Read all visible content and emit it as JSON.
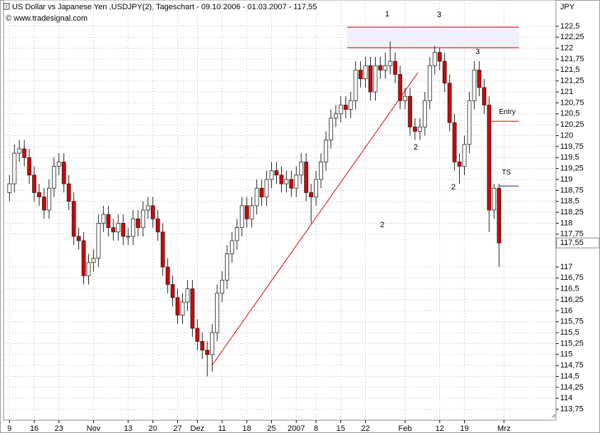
{
  "header": {
    "title": "US Dollar vs Japanese Yen ,USDJPY(2), Tageschart - 09.10.2006 - 01.03.2007 - 117,55",
    "copyright": "© www.tradesignal.com"
  },
  "chart_data": {
    "type": "candlestick",
    "y_unit": "JPY",
    "open": [
      118.7,
      118.9,
      119.6,
      119.7,
      119.5,
      119.1,
      118.7,
      118.6,
      118.3,
      118.8,
      119.3,
      119.4,
      118.9,
      118.5,
      117.7,
      117.6,
      116.8,
      117.1,
      117.2,
      118.0,
      118.2,
      117.9,
      117.8,
      118.0,
      117.7,
      117.7,
      118.1,
      117.9,
      118.3,
      118.4,
      118.1,
      117.8,
      117.0,
      116.6,
      116.3,
      115.9,
      116.2,
      116.5,
      115.6,
      115.3,
      115.1,
      115.0,
      115.5,
      116.4,
      116.7,
      117.3,
      117.6,
      117.9,
      118.4,
      118.1,
      118.4,
      118.8,
      118.6,
      119.0,
      119.2,
      119.1,
      118.9,
      119.0,
      118.8,
      119.1,
      119.4,
      118.7,
      118.6,
      119.0,
      119.4,
      119.9,
      120.4,
      120.5,
      120.7,
      120.6,
      120.8,
      121.5,
      121.3,
      121.6,
      121.0,
      121.6,
      121.5,
      121.6,
      121.7,
      121.4,
      120.8,
      120.9,
      120.2,
      120.1,
      120.2,
      120.8,
      121.6,
      121.9,
      121.7,
      121.2,
      120.3,
      119.4,
      119.3,
      119.8,
      120.8,
      121.5,
      121.1,
      120.7,
      118.3,
      118.8
    ],
    "high": [
      119.1,
      119.8,
      119.9,
      119.9,
      119.7,
      119.3,
      118.9,
      118.8,
      119.0,
      119.5,
      119.6,
      119.6,
      119.1,
      118.7,
      117.9,
      117.8,
      117.3,
      117.4,
      118.2,
      118.4,
      118.4,
      118.1,
      118.2,
      118.2,
      117.9,
      118.3,
      118.3,
      118.5,
      118.6,
      118.6,
      118.3,
      118.0,
      117.2,
      116.8,
      116.5,
      116.4,
      116.7,
      116.7,
      115.8,
      115.5,
      115.3,
      115.7,
      116.6,
      116.9,
      117.5,
      117.8,
      118.1,
      118.6,
      118.6,
      118.6,
      119.0,
      119.0,
      119.2,
      119.4,
      119.4,
      119.3,
      119.2,
      119.2,
      119.3,
      119.6,
      119.6,
      118.9,
      119.2,
      119.6,
      120.1,
      120.6,
      120.7,
      120.9,
      120.9,
      121.0,
      121.7,
      121.7,
      121.8,
      121.8,
      121.8,
      121.8,
      121.9,
      122.15,
      121.9,
      121.6,
      121.1,
      121.1,
      120.4,
      120.4,
      121.0,
      121.8,
      122.05,
      122.0,
      121.9,
      121.4,
      120.5,
      119.6,
      120.0,
      121.0,
      121.7,
      121.7,
      121.3,
      120.9,
      118.9,
      118.9
    ],
    "low": [
      118.5,
      118.7,
      119.4,
      119.3,
      118.9,
      118.5,
      118.4,
      118.1,
      118.1,
      118.6,
      119.1,
      118.7,
      118.3,
      117.5,
      117.4,
      116.6,
      116.6,
      116.9,
      117.0,
      117.8,
      117.7,
      117.6,
      117.6,
      117.5,
      117.5,
      117.5,
      117.7,
      117.7,
      118.1,
      117.9,
      117.6,
      116.8,
      116.4,
      116.1,
      115.7,
      115.7,
      116.0,
      115.4,
      115.1,
      114.9,
      114.5,
      114.6,
      115.3,
      116.2,
      116.5,
      117.1,
      117.4,
      117.7,
      117.9,
      117.9,
      118.2,
      118.4,
      118.4,
      118.8,
      118.9,
      118.7,
      118.7,
      118.6,
      118.6,
      118.9,
      118.5,
      118.0,
      118.4,
      118.8,
      119.2,
      119.7,
      120.2,
      120.3,
      120.4,
      120.4,
      120.6,
      121.1,
      121.1,
      120.8,
      120.8,
      121.3,
      121.3,
      121.4,
      121.2,
      120.6,
      120.6,
      120.0,
      119.9,
      119.9,
      120.0,
      120.6,
      121.4,
      121.5,
      121.0,
      120.1,
      119.2,
      118.9,
      119.1,
      119.6,
      120.6,
      120.9,
      120.5,
      117.8,
      118.1,
      117.0
    ],
    "close": [
      118.9,
      119.6,
      119.7,
      119.5,
      119.1,
      118.7,
      118.6,
      118.3,
      118.8,
      119.3,
      119.4,
      118.9,
      118.5,
      117.7,
      117.6,
      116.8,
      117.1,
      117.2,
      118.0,
      118.2,
      117.9,
      117.8,
      118.0,
      117.7,
      117.7,
      118.1,
      117.9,
      118.3,
      118.4,
      118.1,
      117.8,
      117.0,
      116.6,
      116.3,
      115.9,
      116.2,
      116.5,
      115.6,
      115.3,
      115.1,
      115.0,
      115.5,
      116.4,
      116.7,
      117.3,
      117.6,
      117.9,
      118.4,
      118.1,
      118.4,
      118.8,
      118.6,
      119.0,
      119.2,
      119.1,
      118.9,
      119.0,
      118.8,
      119.1,
      119.4,
      118.7,
      118.6,
      119.0,
      119.4,
      119.9,
      120.4,
      120.5,
      120.7,
      120.6,
      120.8,
      121.5,
      121.3,
      121.6,
      121.0,
      121.6,
      121.5,
      121.6,
      121.7,
      121.4,
      120.8,
      120.9,
      120.2,
      120.1,
      120.2,
      120.8,
      121.6,
      121.9,
      121.7,
      121.2,
      120.3,
      119.4,
      119.3,
      119.8,
      120.8,
      121.5,
      121.1,
      120.7,
      118.3,
      118.8,
      117.55
    ],
    "last_close_label": "117,55",
    "up_color": "#ffffff",
    "down_color": "#d80000",
    "xlim": [
      -1.2,
      110.5
    ],
    "ylim": [
      113.5,
      123.1
    ],
    "xticks": [
      {
        "value": 0,
        "label": "9"
      },
      {
        "value": 5,
        "label": "16"
      },
      {
        "value": 10,
        "label": "23"
      },
      {
        "value": 17,
        "label": "Nov"
      },
      {
        "value": 24,
        "label": "13"
      },
      {
        "value": 29,
        "label": "20"
      },
      {
        "value": 34,
        "label": "27"
      },
      {
        "value": 38,
        "label": "Dez"
      },
      {
        "value": 43,
        "label": "11"
      },
      {
        "value": 48,
        "label": "18"
      },
      {
        "value": 53,
        "label": "25"
      },
      {
        "value": 58,
        "label": "2007"
      },
      {
        "value": 62,
        "label": "8"
      },
      {
        "value": 67,
        "label": "15"
      },
      {
        "value": 72,
        "label": "22"
      },
      {
        "value": 80,
        "label": "Feb"
      },
      {
        "value": 87,
        "label": "12"
      },
      {
        "value": 92,
        "label": "19"
      },
      {
        "value": 100,
        "label": "Mrz"
      }
    ],
    "yticks": [
      {
        "value": 113.75,
        "label": "113,75"
      },
      114,
      {
        "value": 114.25,
        "label": "114,25"
      },
      {
        "value": 114.5,
        "label": "114,5"
      },
      {
        "value": 114.75,
        "label": "114,75"
      },
      115,
      {
        "value": 115.25,
        "label": "115,25"
      },
      {
        "value": 115.5,
        "label": "115,5"
      },
      {
        "value": 115.75,
        "label": "115,75"
      },
      116,
      {
        "value": 116.25,
        "label": "116,25"
      },
      {
        "value": 116.5,
        "label": "116,5"
      },
      {
        "value": 116.75,
        "label": "116,75"
      },
      117,
      {
        "value": 117.75,
        "label": "117,75"
      },
      118,
      {
        "value": 118.25,
        "label": "118,25"
      },
      {
        "value": 118.5,
        "label": "118,5"
      },
      {
        "value": 118.75,
        "label": "118,75"
      },
      119,
      {
        "value": 119.25,
        "label": "119,25"
      },
      {
        "value": 119.5,
        "label": "119,5"
      },
      {
        "value": 119.75,
        "label": "119,75"
      },
      120,
      {
        "value": 120.25,
        "label": "120,25"
      },
      {
        "value": 120.5,
        "label": "120,5"
      },
      {
        "value": 120.75,
        "label": "120,75"
      },
      121,
      {
        "value": 121.25,
        "label": "121,25"
      },
      {
        "value": 121.5,
        "label": "121,5"
      },
      {
        "value": 121.75,
        "label": "121,75"
      },
      122,
      {
        "value": 122.25,
        "label": "122,25"
      },
      {
        "value": 122.5,
        "label": "122,5"
      }
    ],
    "grid": true,
    "trendline": {
      "x": [
        41,
        82.6
      ],
      "y": [
        114.76,
        121.44
      ],
      "color": "#e00000"
    },
    "zone": {
      "lower": 122.01,
      "upper": 122.48,
      "color": "#d40000"
    },
    "entry": {
      "label": "Entry",
      "value": 120.33,
      "color": "#d40000"
    },
    "stop": {
      "label": "TS",
      "value": 118.85,
      "color": "#2020a0"
    },
    "wave_labels": [
      "1",
      "3",
      "3",
      "2",
      "2",
      "2"
    ],
    "wave_color": "#6a6ad0"
  }
}
